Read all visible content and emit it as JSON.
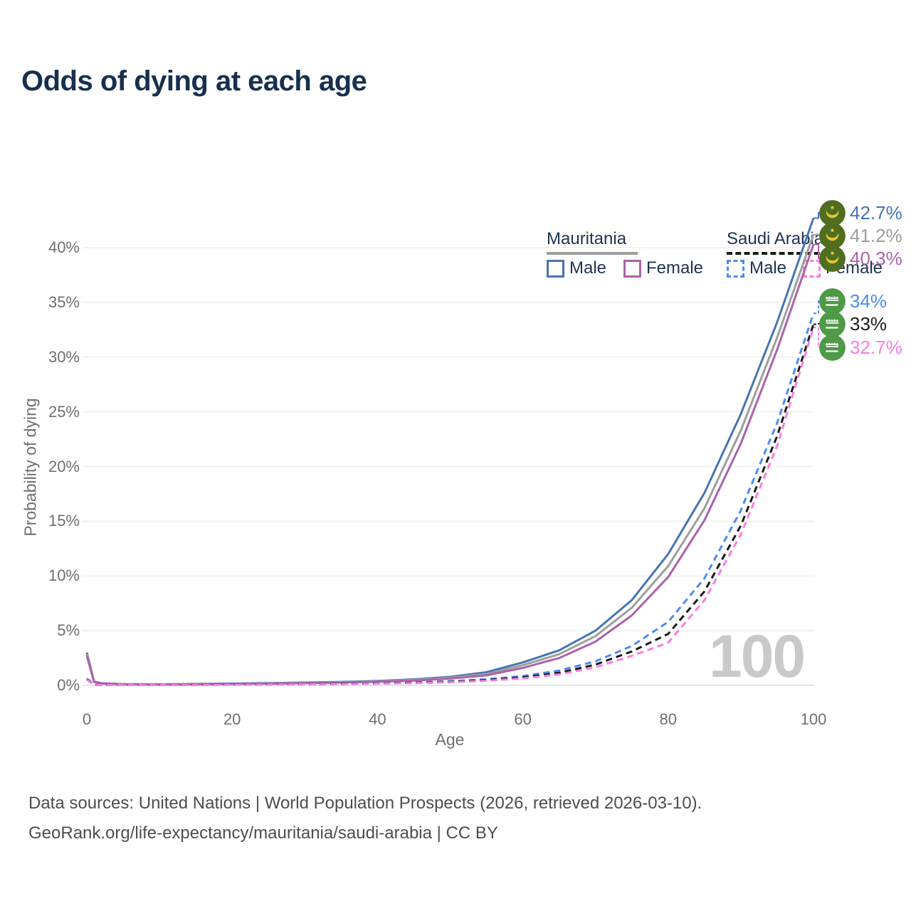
{
  "title": "Odds of dying at each age",
  "legend": {
    "groups": [
      {
        "label": "Mauritania",
        "line_style": "solid",
        "underline_color": "#9e9e9e",
        "items": [
          {
            "label": "Male",
            "color": "#4675b2",
            "dashed": false
          },
          {
            "label": "Female",
            "color": "#ab63ab",
            "dashed": false
          }
        ]
      },
      {
        "label": "Saudi Arabia",
        "line_style": "dashed",
        "underline_color": "#1a1a1a",
        "items": [
          {
            "label": "Male",
            "color": "#4a8cf2",
            "dashed": true
          },
          {
            "label": "Female",
            "color": "#fb7ce0",
            "dashed": true
          }
        ]
      }
    ]
  },
  "watermark": "100",
  "footer": {
    "line1": "Data sources: United Nations | World Population Prospects (2026, retrieved 2026-03-10).",
    "line2": "GeoRank.org/life-expectancy/mauritania/saudi-arabia | CC BY"
  },
  "chart_data": {
    "type": "line",
    "title": "Odds of dying at each age",
    "xlabel": "Age",
    "ylabel": "Probability of dying",
    "xlim": [
      0,
      100
    ],
    "ylim_percent": [
      0,
      44
    ],
    "x_ticks": [
      0,
      20,
      40,
      60,
      80,
      100
    ],
    "y_ticks_percent": [
      0,
      5,
      10,
      15,
      20,
      25,
      30,
      35,
      40
    ],
    "grid": true,
    "legend_position": "top-right",
    "ages": [
      0,
      1,
      2,
      5,
      10,
      15,
      20,
      25,
      30,
      35,
      40,
      45,
      50,
      55,
      60,
      65,
      70,
      75,
      80,
      85,
      90,
      95,
      100
    ],
    "series": [
      {
        "name": "Mauritania Male",
        "country": "Mauritania",
        "sex": "male",
        "color": "#4675b2",
        "dashed": false,
        "flag": "mauritania",
        "end_label": "42.7%",
        "values_percent": [
          3.0,
          0.35,
          0.2,
          0.12,
          0.1,
          0.13,
          0.17,
          0.21,
          0.26,
          0.32,
          0.41,
          0.55,
          0.78,
          1.2,
          2.1,
          3.2,
          5.0,
          7.8,
          12.0,
          17.6,
          24.8,
          33.2,
          42.7
        ]
      },
      {
        "name": "Mauritania Both sexes",
        "country": "Mauritania",
        "sex": "both",
        "color": "#9e9e9e",
        "dashed": false,
        "flag": "mauritania",
        "end_label": "41.2%",
        "values_percent": [
          2.85,
          0.33,
          0.19,
          0.11,
          0.09,
          0.12,
          0.15,
          0.19,
          0.23,
          0.29,
          0.37,
          0.5,
          0.7,
          1.05,
          1.85,
          2.85,
          4.5,
          7.1,
          10.9,
          16.2,
          23.3,
          31.8,
          41.2
        ]
      },
      {
        "name": "Mauritania Female",
        "country": "Mauritania",
        "sex": "female",
        "color": "#ab63ab",
        "dashed": false,
        "flag": "mauritania",
        "end_label": "40.3%",
        "values_percent": [
          2.7,
          0.31,
          0.18,
          0.1,
          0.08,
          0.1,
          0.13,
          0.16,
          0.2,
          0.26,
          0.33,
          0.44,
          0.62,
          0.92,
          1.6,
          2.5,
          4.0,
          6.4,
          9.9,
          15.1,
          22.1,
          30.7,
          40.3
        ]
      },
      {
        "name": "Saudi Arabia Male",
        "country": "Saudi Arabia",
        "sex": "male",
        "color": "#4a8cf2",
        "dashed": true,
        "flag": "saudi-arabia",
        "end_label": "34%",
        "values_percent": [
          0.62,
          0.07,
          0.05,
          0.04,
          0.04,
          0.06,
          0.09,
          0.11,
          0.13,
          0.16,
          0.2,
          0.27,
          0.38,
          0.56,
          0.85,
          1.35,
          2.2,
          3.6,
          5.8,
          9.8,
          16.0,
          24.0,
          34.0
        ]
      },
      {
        "name": "Saudi Arabia Both sexes",
        "country": "Saudi Arabia",
        "sex": "both",
        "color": "#1a1a1a",
        "dashed": true,
        "flag": "saudi-arabia",
        "end_label": "33%",
        "values_percent": [
          0.57,
          0.065,
          0.045,
          0.035,
          0.035,
          0.05,
          0.07,
          0.09,
          0.11,
          0.14,
          0.18,
          0.24,
          0.33,
          0.48,
          0.73,
          1.15,
          1.9,
          3.1,
          4.7,
          8.6,
          14.6,
          22.8,
          33.0
        ]
      },
      {
        "name": "Saudi Arabia Female",
        "country": "Saudi Arabia",
        "sex": "female",
        "color": "#fb7ce0",
        "dashed": true,
        "flag": "saudi-arabia",
        "end_label": "32.7%",
        "values_percent": [
          0.52,
          0.06,
          0.04,
          0.03,
          0.03,
          0.04,
          0.06,
          0.08,
          0.1,
          0.12,
          0.16,
          0.21,
          0.29,
          0.42,
          0.64,
          1.0,
          1.65,
          2.7,
          3.9,
          7.8,
          13.8,
          21.9,
          32.7
        ]
      }
    ]
  }
}
